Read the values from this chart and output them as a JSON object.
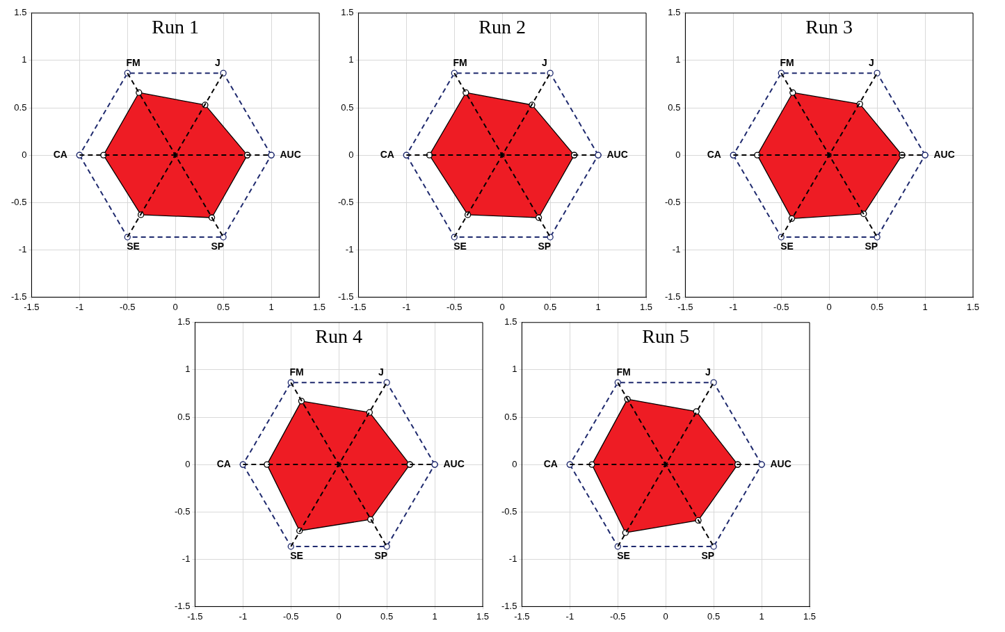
{
  "chart_data": [
    {
      "type": "scatter",
      "title": "Run 1",
      "xlim": [
        -1.5,
        1.5
      ],
      "ylim": [
        -1.5,
        1.5
      ],
      "xticks": [
        -1.5,
        -1,
        -0.5,
        0,
        0.5,
        1,
        1.5
      ],
      "yticks": [
        -1.5,
        -1,
        -0.5,
        0,
        0.5,
        1,
        1.5
      ],
      "grid": true,
      "series": [
        {
          "type": "scatter",
          "x": [
            0
          ],
          "values": [
            0
          ],
          "color": "#000000",
          "marker": "cross"
        },
        {
          "type": "line",
          "x": [
            -1,
            1
          ],
          "values": [
            0,
            0
          ],
          "color": "#000000",
          "line_style": "dashed",
          "marker": "none"
        },
        {
          "type": "line",
          "x": [
            -0.5,
            0.5
          ],
          "values": [
            -0.866,
            0.866
          ],
          "color": "#000000",
          "line_style": "dashed",
          "marker": "none"
        },
        {
          "type": "line",
          "x": [
            -0.5,
            0.5
          ],
          "values": [
            0.866,
            -0.866
          ],
          "color": "#000000",
          "line_style": "dashed",
          "marker": "none"
        },
        {
          "type": "line",
          "x": [
            1,
            0.5,
            -0.5,
            -1
          ],
          "values": [
            0,
            0.866,
            0.866,
            0
          ],
          "color": "#1f2a6e",
          "line_style": "dashed",
          "marker": "circle"
        },
        {
          "type": "line",
          "x": [
            -1,
            -0.5,
            0.5,
            1
          ],
          "values": [
            0,
            -0.866,
            -0.866,
            0
          ],
          "color": "#1f2a6e",
          "line_style": "dashed",
          "marker": "circle"
        },
        {
          "type": "area",
          "x": [
            0.75,
            0.31,
            -0.38,
            -0.75,
            -0.36,
            0.38,
            0.75
          ],
          "values": [
            0,
            0.53,
            0.66,
            0,
            -0.63,
            -0.66,
            0
          ],
          "color": "#ee1c24",
          "marker": "circle"
        }
      ],
      "annotations": [
        "AUC",
        "J",
        "FM",
        "CA",
        "SE",
        "SP"
      ]
    },
    {
      "type": "scatter",
      "title": "Run 2",
      "xlim": [
        -1.5,
        1.5
      ],
      "ylim": [
        -1.5,
        1.5
      ],
      "xticks": [
        -1.5,
        -1,
        -0.5,
        0,
        0.5,
        1,
        1.5
      ],
      "yticks": [
        -1.5,
        -1,
        -0.5,
        0,
        0.5,
        1,
        1.5
      ],
      "grid": true,
      "series": [
        {
          "type": "scatter",
          "x": [
            0
          ],
          "values": [
            0
          ],
          "color": "#000000",
          "marker": "cross"
        },
        {
          "type": "line",
          "x": [
            -1,
            1
          ],
          "values": [
            0,
            0
          ],
          "color": "#000000",
          "line_style": "dashed",
          "marker": "none"
        },
        {
          "type": "line",
          "x": [
            -0.5,
            0.5
          ],
          "values": [
            -0.866,
            0.866
          ],
          "color": "#000000",
          "line_style": "dashed",
          "marker": "none"
        },
        {
          "type": "line",
          "x": [
            -0.5,
            0.5
          ],
          "values": [
            0.866,
            -0.866
          ],
          "color": "#000000",
          "line_style": "dashed",
          "marker": "none"
        },
        {
          "type": "line",
          "x": [
            1,
            0.5,
            -0.5,
            -1
          ],
          "values": [
            0,
            0.866,
            0.866,
            0
          ],
          "color": "#1f2a6e",
          "line_style": "dashed",
          "marker": "circle"
        },
        {
          "type": "line",
          "x": [
            -1,
            -0.5,
            0.5,
            1
          ],
          "values": [
            0,
            -0.866,
            -0.866,
            0
          ],
          "color": "#1f2a6e",
          "line_style": "dashed",
          "marker": "circle"
        },
        {
          "type": "area",
          "x": [
            0.75,
            0.31,
            -0.38,
            -0.76,
            -0.36,
            0.38,
            0.75
          ],
          "values": [
            0,
            0.53,
            0.66,
            0,
            -0.63,
            -0.66,
            0
          ],
          "color": "#ee1c24",
          "marker": "circle"
        }
      ],
      "annotations": [
        "AUC",
        "J",
        "FM",
        "CA",
        "SE",
        "SP"
      ]
    },
    {
      "type": "scatter",
      "title": "Run 3",
      "xlim": [
        -1.5,
        1.5
      ],
      "ylim": [
        -1.5,
        1.5
      ],
      "xticks": [
        -1.5,
        -1,
        -0.5,
        0,
        0.5,
        1,
        1.5
      ],
      "yticks": [
        -1.5,
        -1,
        -0.5,
        0,
        0.5,
        1,
        1.5
      ],
      "grid": true,
      "series": [
        {
          "type": "scatter",
          "x": [
            0
          ],
          "values": [
            0
          ],
          "color": "#000000",
          "marker": "cross"
        },
        {
          "type": "line",
          "x": [
            -1,
            1
          ],
          "values": [
            0,
            0
          ],
          "color": "#000000",
          "line_style": "dashed",
          "marker": "none"
        },
        {
          "type": "line",
          "x": [
            -0.5,
            0.5
          ],
          "values": [
            -0.866,
            0.866
          ],
          "color": "#000000",
          "line_style": "dashed",
          "marker": "none"
        },
        {
          "type": "line",
          "x": [
            -0.5,
            0.5
          ],
          "values": [
            0.866,
            -0.866
          ],
          "color": "#000000",
          "line_style": "dashed",
          "marker": "none"
        },
        {
          "type": "line",
          "x": [
            1,
            0.5,
            -0.5,
            -1
          ],
          "values": [
            0,
            0.866,
            0.866,
            0
          ],
          "color": "#1f2a6e",
          "line_style": "dashed",
          "marker": "circle"
        },
        {
          "type": "line",
          "x": [
            -1,
            -0.5,
            0.5,
            1
          ],
          "values": [
            0,
            -0.866,
            -0.866,
            0
          ],
          "color": "#1f2a6e",
          "line_style": "dashed",
          "marker": "circle"
        },
        {
          "type": "area",
          "x": [
            0.76,
            0.32,
            -0.38,
            -0.75,
            -0.39,
            0.36,
            0.76
          ],
          "values": [
            0,
            0.54,
            0.66,
            0,
            -0.67,
            -0.62,
            0
          ],
          "color": "#ee1c24",
          "marker": "circle"
        }
      ],
      "annotations": [
        "AUC",
        "J",
        "FM",
        "CA",
        "SE",
        "SP"
      ]
    },
    {
      "type": "scatter",
      "title": "Run 4",
      "xlim": [
        -1.5,
        1.5
      ],
      "ylim": [
        -1.5,
        1.5
      ],
      "xticks": [
        -1.5,
        -1,
        -0.5,
        0,
        0.5,
        1,
        1.5
      ],
      "yticks": [
        -1.5,
        -1,
        -0.5,
        0,
        0.5,
        1,
        1.5
      ],
      "grid": true,
      "series": [
        {
          "type": "scatter",
          "x": [
            0
          ],
          "values": [
            0
          ],
          "color": "#000000",
          "marker": "cross"
        },
        {
          "type": "line",
          "x": [
            -1,
            1
          ],
          "values": [
            0,
            0
          ],
          "color": "#000000",
          "line_style": "dashed",
          "marker": "none"
        },
        {
          "type": "line",
          "x": [
            -0.5,
            0.5
          ],
          "values": [
            -0.866,
            0.866
          ],
          "color": "#000000",
          "line_style": "dashed",
          "marker": "none"
        },
        {
          "type": "line",
          "x": [
            -0.5,
            0.5
          ],
          "values": [
            0.866,
            -0.866
          ],
          "color": "#000000",
          "line_style": "dashed",
          "marker": "none"
        },
        {
          "type": "line",
          "x": [
            1,
            0.5,
            -0.5,
            -1
          ],
          "values": [
            0,
            0.866,
            0.866,
            0
          ],
          "color": "#1f2a6e",
          "line_style": "dashed",
          "marker": "circle"
        },
        {
          "type": "line",
          "x": [
            -1,
            -0.5,
            0.5,
            1
          ],
          "values": [
            0,
            -0.866,
            -0.866,
            0
          ],
          "color": "#1f2a6e",
          "line_style": "dashed",
          "marker": "circle"
        },
        {
          "type": "area",
          "x": [
            0.74,
            0.32,
            -0.39,
            -0.75,
            -0.41,
            0.33,
            0.74
          ],
          "values": [
            0,
            0.55,
            0.67,
            0,
            -0.7,
            -0.58,
            0
          ],
          "color": "#ee1c24",
          "marker": "circle"
        }
      ],
      "annotations": [
        "AUC",
        "J",
        "FM",
        "CA",
        "SE",
        "SP"
      ]
    },
    {
      "type": "scatter",
      "title": "Run 5",
      "xlim": [
        -1.5,
        1.5
      ],
      "ylim": [
        -1.5,
        1.5
      ],
      "xticks": [
        -1.5,
        -1,
        -0.5,
        0,
        0.5,
        1,
        1.5
      ],
      "yticks": [
        -1.5,
        -1,
        -0.5,
        0,
        0.5,
        1,
        1.5
      ],
      "grid": true,
      "series": [
        {
          "type": "scatter",
          "x": [
            0
          ],
          "values": [
            0
          ],
          "color": "#000000",
          "marker": "cross"
        },
        {
          "type": "line",
          "x": [
            -1,
            1
          ],
          "values": [
            0,
            0
          ],
          "color": "#000000",
          "line_style": "dashed",
          "marker": "none"
        },
        {
          "type": "line",
          "x": [
            -0.5,
            0.5
          ],
          "values": [
            -0.866,
            0.866
          ],
          "color": "#000000",
          "line_style": "dashed",
          "marker": "none"
        },
        {
          "type": "line",
          "x": [
            -0.5,
            0.5
          ],
          "values": [
            0.866,
            -0.866
          ],
          "color": "#000000",
          "line_style": "dashed",
          "marker": "none"
        },
        {
          "type": "line",
          "x": [
            1,
            0.5,
            -0.5,
            -1
          ],
          "values": [
            0,
            0.866,
            0.866,
            0
          ],
          "color": "#1f2a6e",
          "line_style": "dashed",
          "marker": "circle"
        },
        {
          "type": "line",
          "x": [
            -1,
            -0.5,
            0.5,
            1
          ],
          "values": [
            0,
            -0.866,
            -0.866,
            0
          ],
          "color": "#1f2a6e",
          "line_style": "dashed",
          "marker": "circle"
        },
        {
          "type": "area",
          "x": [
            0.75,
            0.32,
            -0.4,
            -0.77,
            -0.42,
            0.34,
            0.75
          ],
          "values": [
            0,
            0.56,
            0.69,
            0,
            -0.72,
            -0.59,
            0
          ],
          "color": "#ee1c24",
          "marker": "circle"
        }
      ],
      "annotations": [
        "AUC",
        "J",
        "FM",
        "CA",
        "SE",
        "SP"
      ]
    }
  ]
}
